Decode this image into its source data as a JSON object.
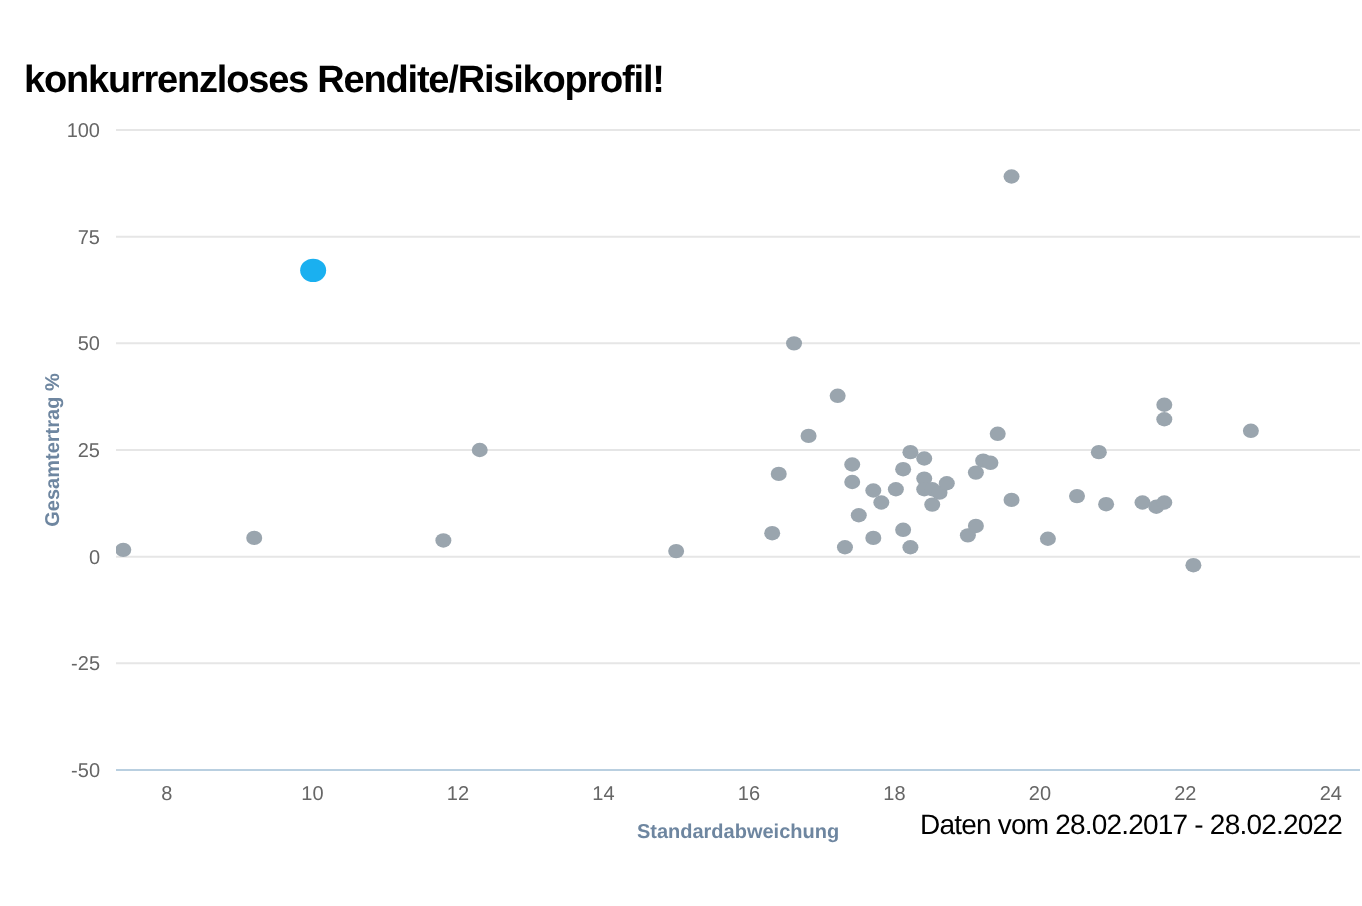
{
  "chart_data": {
    "type": "scatter",
    "title": "konkurrenzloses Rendite/Risikoprofil!",
    "xlabel": "Standardabweichung",
    "ylabel": "Gesamtertrag %",
    "annotations": [
      "Daten vom 28.02.2017 - 28.02.2022"
    ],
    "xlim": [
      7.3,
      24.4
    ],
    "xticks": [
      8,
      10,
      12,
      14,
      16,
      18,
      20,
      22,
      24
    ],
    "ylim": [
      -50,
      100
    ],
    "yticks": [
      -50,
      -25,
      0,
      25,
      50,
      75,
      100
    ],
    "grid": "y",
    "marker": "circle",
    "series": [
      {
        "color": "#9aa5ae",
        "x": [
          7.4,
          9.2,
          11.8,
          12.3,
          15.0,
          19.61,
          16.62,
          17.22,
          16.82,
          16.41,
          16.32,
          17.42,
          17.42,
          17.51,
          17.32,
          17.71,
          17.82,
          17.71,
          18.02,
          18.12,
          18.22,
          18.12,
          18.22,
          18.41,
          18.41,
          18.41,
          18.52,
          18.52,
          18.62,
          18.72,
          19.01,
          19.12,
          19.12,
          19.22,
          19.32,
          19.42,
          19.61,
          20.11,
          20.51,
          20.81,
          20.91,
          21.41,
          21.6,
          21.71,
          21.71,
          21.71,
          22.11,
          22.9
        ],
        "values": [
          1.6,
          4.4,
          3.8,
          25.0,
          1.3,
          89.1,
          50.0,
          37.7,
          28.3,
          19.4,
          5.5,
          21.6,
          17.5,
          9.7,
          2.2,
          15.5,
          12.7,
          4.4,
          15.8,
          20.5,
          24.5,
          6.3,
          2.2,
          23.0,
          18.3,
          15.8,
          12.2,
          15.8,
          15.0,
          17.2,
          5.0,
          7.2,
          19.7,
          22.5,
          22.0,
          28.8,
          13.3,
          4.2,
          14.2,
          24.5,
          12.3,
          12.7,
          11.7,
          12.7,
          35.6,
          32.2,
          -2.0,
          29.5
        ]
      },
      {
        "color": "#1ab0f0",
        "x": [
          10.01
        ],
        "values": [
          67.1
        ]
      }
    ]
  }
}
